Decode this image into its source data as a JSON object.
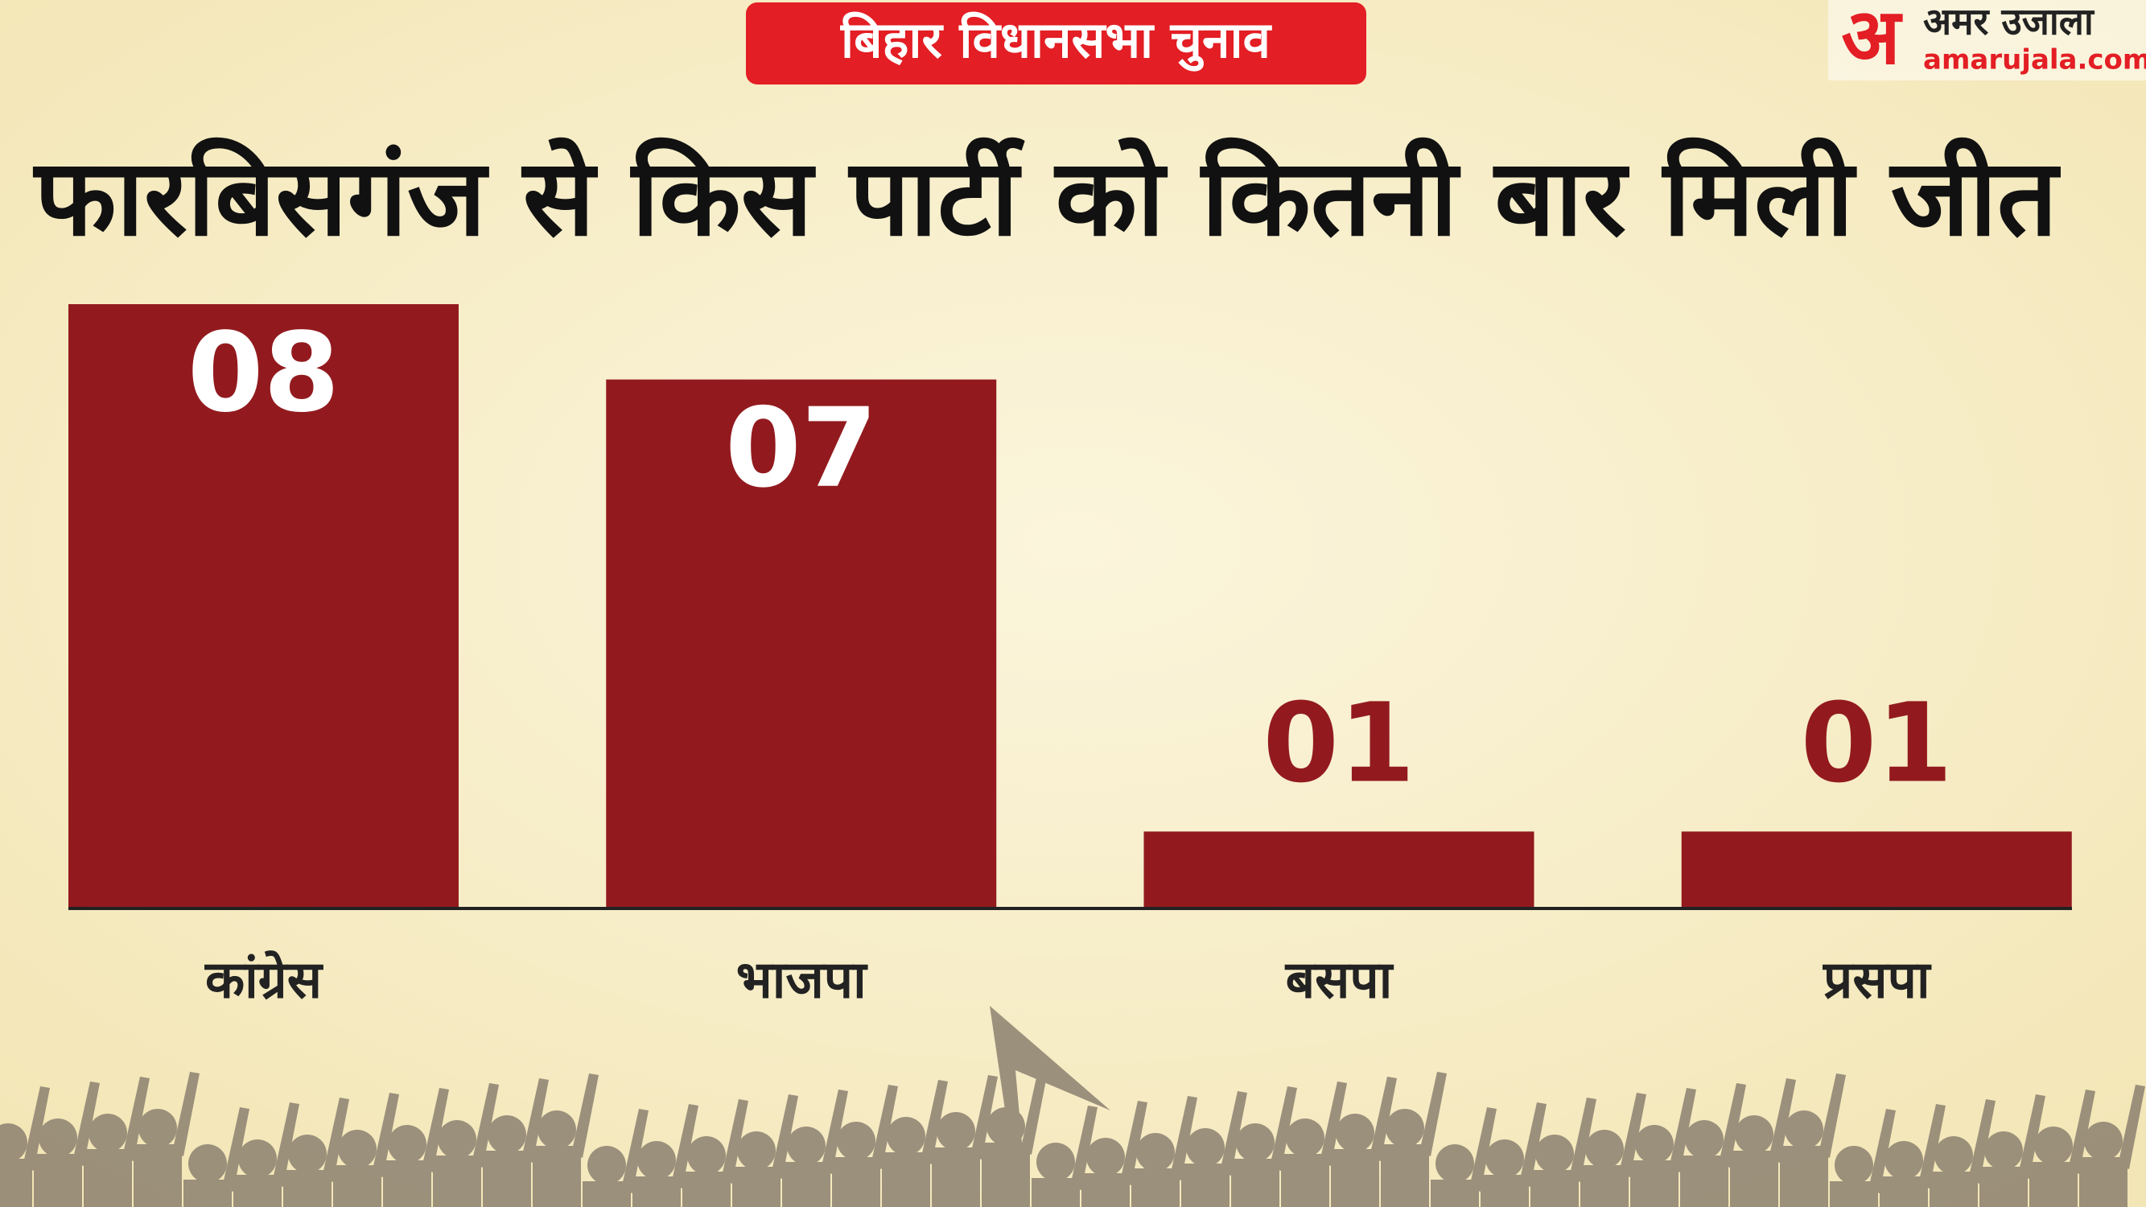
{
  "header": {
    "badge": "बिहार विधानसभा चुनाव",
    "logo_mark": "अ",
    "logo_name": "अमर उजाला",
    "logo_site": "amarujala.com"
  },
  "chart_data": {
    "type": "bar",
    "title": "फारबिसगंज से किस पार्टी को कितनी बार मिली जीत",
    "categories": [
      "कांग्रेस",
      "भाजपा",
      "बसपा",
      "प्रसपा"
    ],
    "values": [
      8,
      7,
      1,
      1
    ],
    "value_labels": [
      "08",
      "07",
      "01",
      "01"
    ],
    "color": "#921a1e",
    "ylim": [
      0,
      8
    ]
  }
}
